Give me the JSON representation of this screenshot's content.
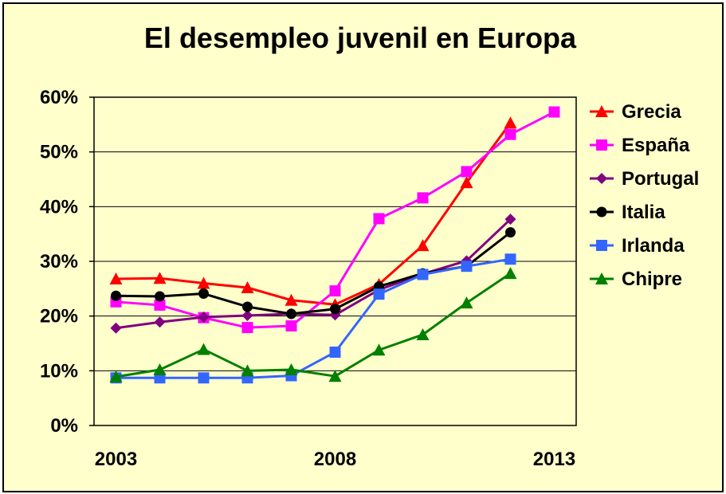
{
  "chart_data": {
    "type": "line",
    "title": "El desempleo juvenil en Europa",
    "xlabel": "",
    "ylabel": "",
    "x": [
      2003,
      2004,
      2005,
      2006,
      2007,
      2008,
      2009,
      2010,
      2011,
      2012,
      2013
    ],
    "x_tick_labels": [
      "2003",
      "2008",
      "2013"
    ],
    "x_ticks": [
      2003,
      2008,
      2013
    ],
    "ylim": [
      0,
      60
    ],
    "y_ticks": [
      0,
      10,
      20,
      30,
      40,
      50,
      60
    ],
    "y_tick_labels": [
      "0%",
      "10%",
      "20%",
      "30%",
      "40%",
      "50%",
      "60%"
    ],
    "grid": "horizontal",
    "legend_position": "right",
    "series": [
      {
        "name": "Grecia",
        "color": "#ff0000",
        "marker": "triangle",
        "values": [
          26.8,
          26.9,
          26.0,
          25.2,
          22.9,
          22.1,
          25.8,
          32.9,
          44.4,
          55.3,
          null
        ]
      },
      {
        "name": "España",
        "color": "#ff00ff",
        "marker": "square",
        "values": [
          22.6,
          22.0,
          19.7,
          17.9,
          18.2,
          24.6,
          37.8,
          41.6,
          46.4,
          53.2,
          57.3
        ]
      },
      {
        "name": "Portugal",
        "color": "#800080",
        "marker": "diamond",
        "values": [
          17.8,
          18.9,
          19.8,
          20.1,
          20.4,
          20.2,
          24.8,
          27.7,
          30.1,
          37.7,
          null
        ]
      },
      {
        "name": "Italia",
        "color": "#000000",
        "marker": "circle",
        "values": [
          23.7,
          23.6,
          24.1,
          21.7,
          20.4,
          21.3,
          25.4,
          27.8,
          29.1,
          35.3,
          null
        ]
      },
      {
        "name": "Irlanda",
        "color": "#3366ff",
        "marker": "square",
        "values": [
          8.7,
          8.7,
          8.7,
          8.7,
          9.1,
          13.4,
          24.0,
          27.6,
          29.1,
          30.4,
          null
        ]
      },
      {
        "name": "Chipre",
        "color": "#008000",
        "marker": "triangle",
        "values": [
          8.9,
          10.2,
          13.9,
          10.0,
          10.2,
          9.0,
          13.8,
          16.6,
          22.4,
          27.8,
          null
        ]
      }
    ]
  }
}
